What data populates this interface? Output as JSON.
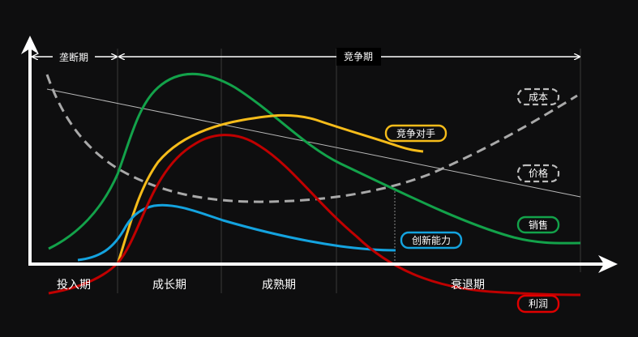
{
  "labels": {
    "monopoly": "垄断期",
    "competition": "竞争期",
    "stages": [
      "投入期",
      "成长期",
      "成熟期",
      "衰退期"
    ],
    "cost": "成本",
    "price": "价格",
    "competitor": "竞争对手",
    "sales": "销售",
    "innovation": "创新能力",
    "profit": "利润"
  },
  "colors": {
    "background": "#0e0e0f",
    "axis": "#ffffff",
    "grid": "#3a3a3a",
    "cost": "#a9a9a9",
    "price": "#b8b8b8",
    "competitor": "#f6bc1a",
    "sales": "#13a24a",
    "innovation": "#14a3df",
    "profit": "#c00000"
  }
}
